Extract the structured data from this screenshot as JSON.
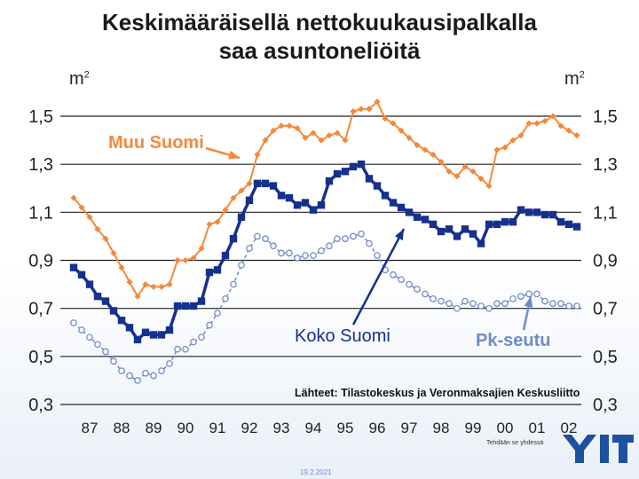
{
  "slide": {
    "title_line1": "Keskimääräisellä nettokuukausipalkalla",
    "title_line2": "saa asuntoneliöitä",
    "y_unit": "m",
    "y_unit_exp": "2",
    "tagline": "Tehdään se yhdessä",
    "date": "19.2.2021",
    "logo_text": "YIT"
  },
  "colors": {
    "muu": "#f5883a",
    "koko": "#16308f",
    "pk": "#6f8cc8",
    "grid": "#222222"
  },
  "chart_data": {
    "type": "line",
    "xlabel": "",
    "ylabel": "m²",
    "ylim": [
      0.3,
      1.5
    ],
    "y_ticks": [
      "0,3",
      "0,5",
      "0,7",
      "0,9",
      "1,1",
      "1,3",
      "1,5"
    ],
    "y_tick_values": [
      0.3,
      0.5,
      0.7,
      0.9,
      1.1,
      1.3,
      1.5
    ],
    "x_ticks": [
      "87",
      "88",
      "89",
      "90",
      "91",
      "92",
      "93",
      "94",
      "95",
      "96",
      "97",
      "98",
      "99",
      "00",
      "01",
      "02"
    ],
    "x_start": 1987.0,
    "x_step": 0.25,
    "grid": "horizontal",
    "annotations": {
      "muu": "Muu Suomi",
      "koko": "Koko Suomi",
      "pk": "Pk-seutu",
      "source": "Lähteet: Tilastokeskus ja Veronmaksajien Keskusliitto"
    },
    "series": [
      {
        "name": "Muu Suomi",
        "key": "muu",
        "values": [
          1.16,
          1.12,
          1.08,
          1.03,
          0.99,
          0.93,
          0.87,
          0.81,
          0.75,
          0.8,
          0.79,
          0.79,
          0.8,
          0.9,
          0.9,
          0.91,
          0.95,
          1.05,
          1.06,
          1.11,
          1.16,
          1.19,
          1.22,
          1.34,
          1.4,
          1.44,
          1.46,
          1.46,
          1.45,
          1.41,
          1.43,
          1.4,
          1.42,
          1.43,
          1.4,
          1.52,
          1.53,
          1.53,
          1.56,
          1.49,
          1.47,
          1.44,
          1.41,
          1.38,
          1.36,
          1.34,
          1.31,
          1.27,
          1.25,
          1.29,
          1.27,
          1.24,
          1.21,
          1.36,
          1.37,
          1.4,
          1.42,
          1.47,
          1.47,
          1.48,
          1.5,
          1.46,
          1.44,
          1.42
        ]
      },
      {
        "name": "Koko Suomi",
        "key": "koko",
        "values": [
          0.87,
          0.84,
          0.8,
          0.75,
          0.73,
          0.69,
          0.65,
          0.62,
          0.57,
          0.6,
          0.59,
          0.59,
          0.61,
          0.71,
          0.71,
          0.71,
          0.73,
          0.85,
          0.86,
          0.92,
          0.99,
          1.08,
          1.15,
          1.22,
          1.22,
          1.21,
          1.17,
          1.16,
          1.13,
          1.14,
          1.11,
          1.13,
          1.23,
          1.26,
          1.27,
          1.29,
          1.3,
          1.24,
          1.21,
          1.17,
          1.14,
          1.12,
          1.1,
          1.08,
          1.07,
          1.05,
          1.02,
          1.03,
          1.0,
          1.03,
          1.01,
          0.97,
          1.05,
          1.05,
          1.06,
          1.06,
          1.11,
          1.1,
          1.1,
          1.09,
          1.09,
          1.06,
          1.05,
          1.04
        ]
      },
      {
        "name": "Pk-seutu",
        "key": "pk",
        "values": [
          0.64,
          0.61,
          0.58,
          0.55,
          0.52,
          0.48,
          0.44,
          0.42,
          0.4,
          0.43,
          0.42,
          0.44,
          0.47,
          0.53,
          0.53,
          0.56,
          0.58,
          0.63,
          0.68,
          0.74,
          0.8,
          0.88,
          0.95,
          1.0,
          0.99,
          0.96,
          0.93,
          0.93,
          0.91,
          0.92,
          0.92,
          0.94,
          0.96,
          0.99,
          0.99,
          1.0,
          1.01,
          0.97,
          0.92,
          0.86,
          0.84,
          0.82,
          0.8,
          0.78,
          0.76,
          0.74,
          0.73,
          0.72,
          0.7,
          0.73,
          0.72,
          0.71,
          0.7,
          0.72,
          0.72,
          0.74,
          0.75,
          0.76,
          0.76,
          0.73,
          0.72,
          0.72,
          0.71,
          0.71
        ]
      }
    ]
  }
}
